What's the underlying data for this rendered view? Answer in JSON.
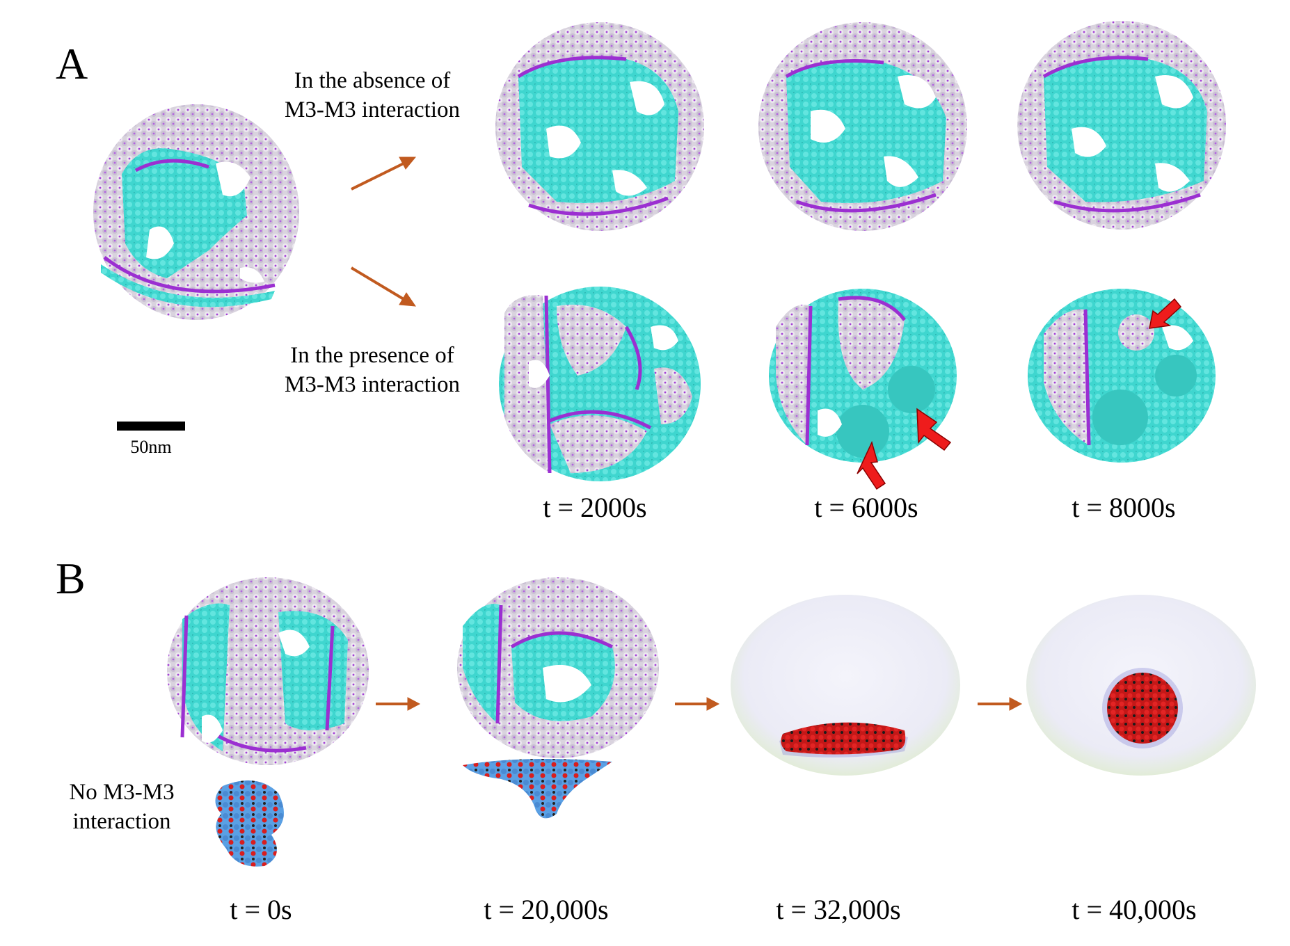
{
  "panels": {
    "a": {
      "label": "A",
      "caption_absent": "In the absence of\nM3-M3 interaction",
      "caption_present": "In the presence of\nM3-M3 interaction",
      "scale_bar_label": "50nm",
      "times": [
        "t = 2000s",
        "t = 6000s",
        "t = 8000s"
      ]
    },
    "b": {
      "label": "B",
      "caption": "No M3-M3\ninteraction",
      "times": [
        "t = 0s",
        "t = 20,000s",
        "t = 32,000s",
        "t = 40,000s"
      ]
    }
  },
  "colors": {
    "membrane_particle": "#cfc7d6",
    "membrane_edge": "#9b2fd1",
    "cyan_domain": "#3fd6cf",
    "arrow": "#c15a1f",
    "highlight_arrow": "#ee1c1c",
    "cluster_blue": "#4a90d9",
    "cluster_red": "#d81e1e",
    "cluster_black": "#222222"
  },
  "icons": [
    "arrow-right-icon",
    "red-pointer-arrow-icon"
  ]
}
